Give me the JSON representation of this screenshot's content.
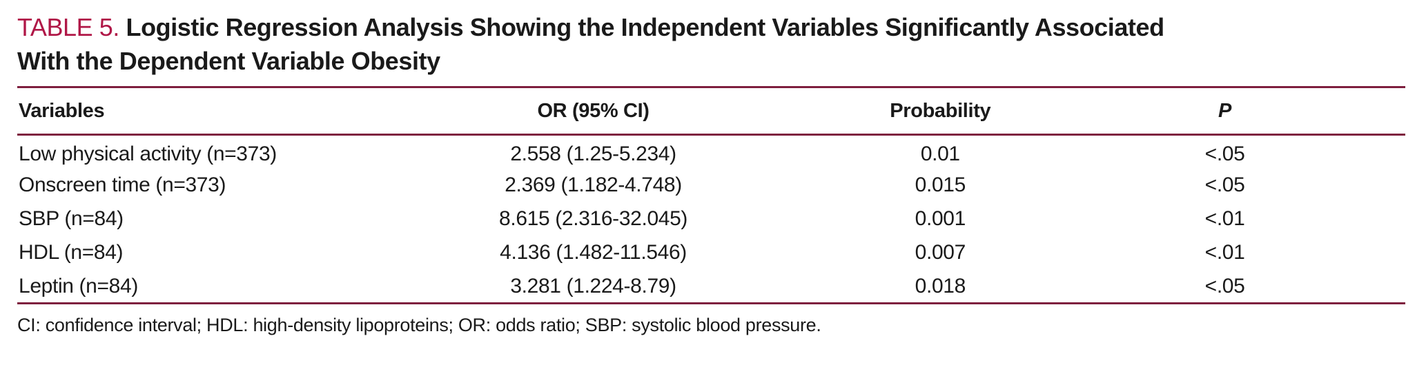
{
  "title": {
    "label": "TABLE 5.",
    "line1": "Logistic Regression Analysis Showing the Independent Variables Significantly Associated",
    "line2": "With the Dependent Variable Obesity"
  },
  "table": {
    "headers": [
      "Variables",
      "OR (95% CI)",
      "Probability",
      "P"
    ],
    "rows": [
      [
        "Low physical activity (n=373)",
        "2.558 (1.25-5.234)",
        "0.01",
        "<.05"
      ],
      [
        "Onscreen time (n=373)",
        "2.369 (1.182-4.748)",
        "0.015",
        "<.05"
      ],
      [
        "SBP (n=84)",
        "8.615 (2.316-32.045)",
        "0.001",
        "<.01"
      ],
      [
        "HDL (n=84)",
        "4.136 (1.482-11.546)",
        "0.007",
        "<.01"
      ],
      [
        "Leptin (n=84)",
        "3.281 (1.224-8.79)",
        "0.018",
        "<.05"
      ]
    ]
  },
  "footnote": "CI: confidence interval; HDL: high-density lipoproteins; OR: odds ratio; SBP: systolic blood pressure.",
  "colors": {
    "accent": "#B01747",
    "rule": "#7E1F3E",
    "text": "#1A1A1A"
  }
}
